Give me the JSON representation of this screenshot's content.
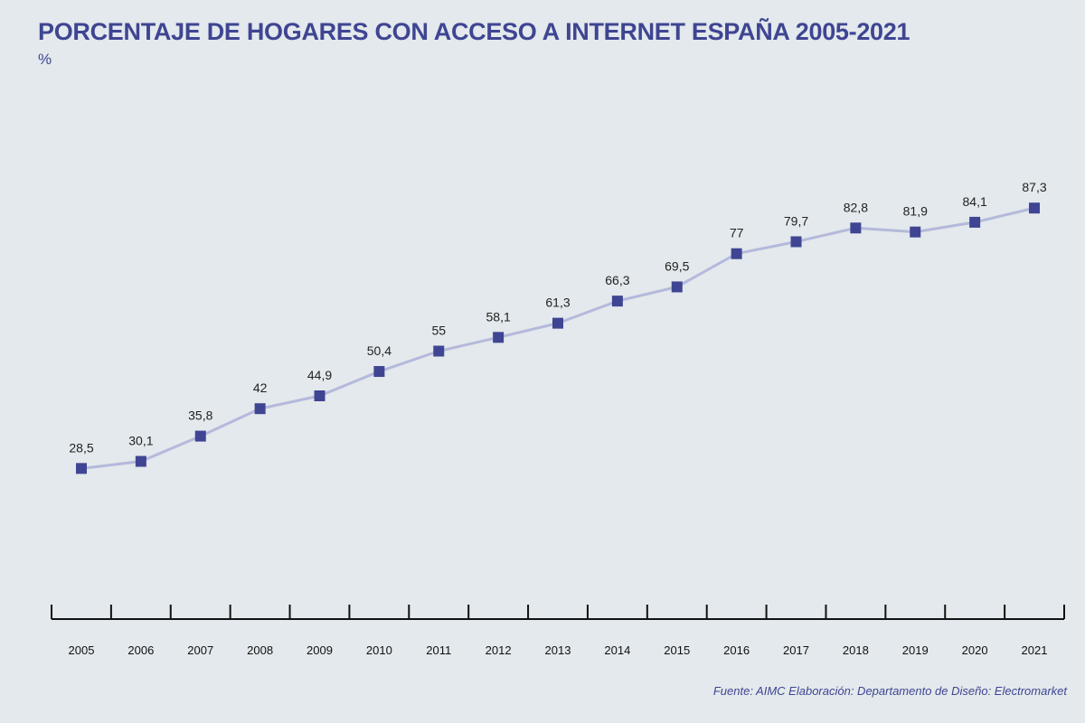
{
  "header": {
    "title": "PORCENTAJE DE HOGARES CON ACCESO A INTERNET ESPAÑA 2005-2021",
    "unit": "%"
  },
  "footer": {
    "source": "Fuente: AIMC  Elaboración: Departamento de Diseño: Electromarket"
  },
  "colors": {
    "background": "#e3e9ec",
    "title": "#3f4592",
    "line": "#b4b9dc",
    "marker": "#3f4592",
    "axis": "#111111"
  },
  "chart_data": {
    "type": "line",
    "title": "PORCENTAJE DE HOGARES CON ACCESO A INTERNET ESPAÑA 2005-2021",
    "xlabel": "",
    "ylabel": "%",
    "grid": false,
    "categories": [
      "2005",
      "2006",
      "2007",
      "2008",
      "2009",
      "2010",
      "2011",
      "2012",
      "2013",
      "2014",
      "2015",
      "2016",
      "2017",
      "2018",
      "2019",
      "2020",
      "2021"
    ],
    "values": [
      28.5,
      30.1,
      35.8,
      42,
      44.9,
      50.4,
      55,
      58.1,
      61.3,
      66.3,
      69.5,
      77,
      79.7,
      82.8,
      81.9,
      84.1,
      87.3
    ],
    "value_labels": [
      "28,5",
      "30,1",
      "35,8",
      "42",
      "44,9",
      "50,4",
      "55",
      "58,1",
      "61,3",
      "66,3",
      "69,5",
      "77",
      "79,7",
      "82,8",
      "81,9",
      "84,1",
      "87,3"
    ]
  }
}
